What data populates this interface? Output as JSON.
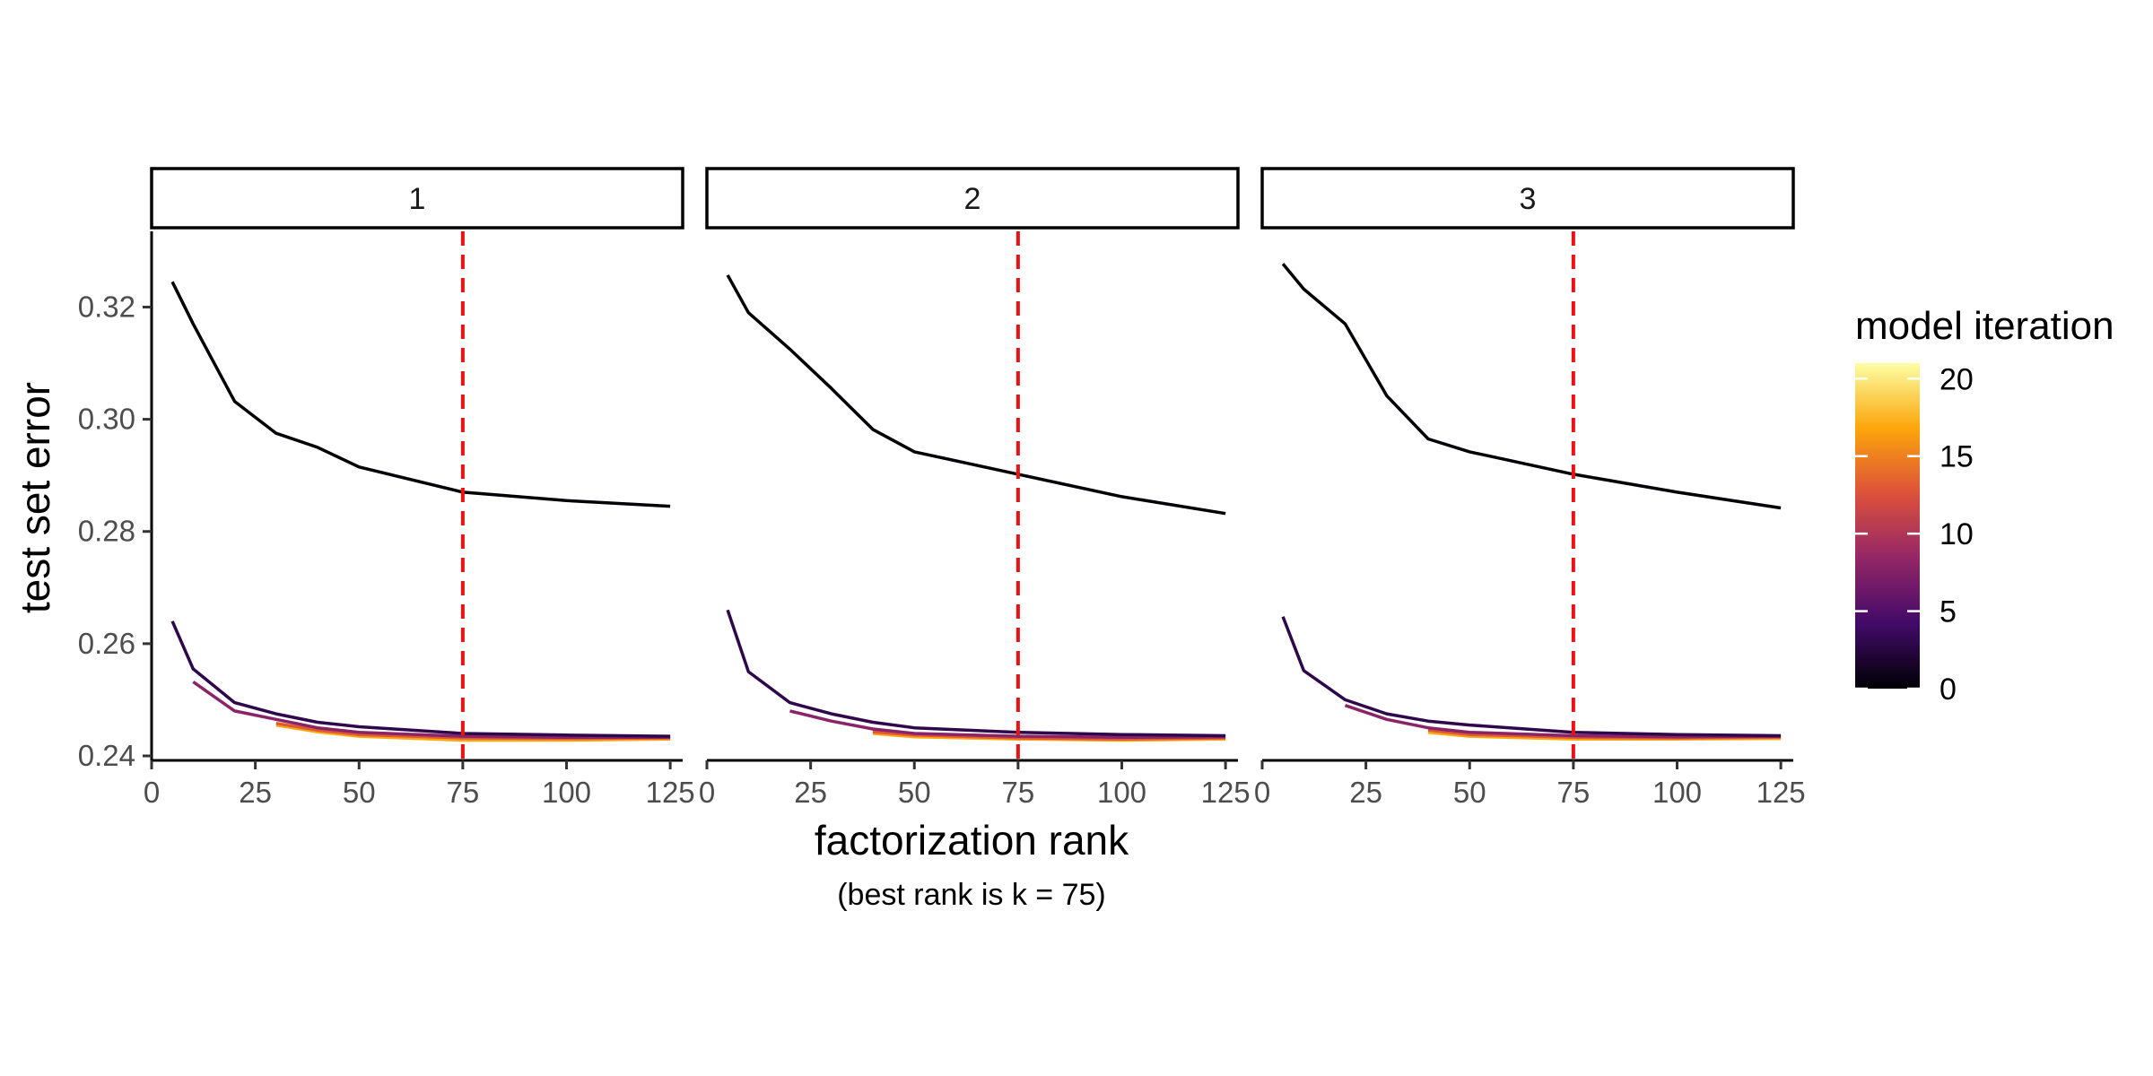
{
  "chart_data": {
    "type": "line",
    "xlabel": "factorization rank",
    "ylabel": "test set error",
    "caption": "(best rank is k = 75)",
    "xlim": [
      0,
      128
    ],
    "ylim": [
      0.2392,
      0.3335
    ],
    "x_ticks": [
      0,
      25,
      50,
      75,
      100,
      125
    ],
    "y_ticks": [
      0.24,
      0.26,
      0.28,
      0.3,
      0.32
    ],
    "y_tick_labels": [
      "0.24",
      "0.26",
      "0.28",
      "0.30",
      "0.32"
    ],
    "reference_line": {
      "x": 75,
      "color": "#ee1111",
      "style": "dashed"
    },
    "legend": {
      "title": "model iteration",
      "type": "colorbar",
      "min": 0,
      "max": 21,
      "ticks": [
        0,
        5,
        10,
        15,
        20
      ],
      "placement": "right"
    },
    "palette": [
      "#000004",
      "#420a68",
      "#932667",
      "#dd513a",
      "#fca50a",
      "#fcffa4"
    ],
    "panels": [
      {
        "strip": "1",
        "series": [
          {
            "iteration": 0,
            "x": [
              5,
              10,
              20,
              30,
              40,
              50,
              75,
              100,
              125
            ],
            "y": [
              0.3245,
              0.317,
              0.3032,
              0.2975,
              0.295,
              0.2915,
              0.287,
              0.2855,
              0.2845
            ]
          },
          {
            "iteration": 3,
            "x": [
              5,
              10,
              20,
              30,
              40,
              50,
              75,
              100,
              125
            ],
            "y": [
              0.264,
              0.2555,
              0.2495,
              0.2475,
              0.246,
              0.2452,
              0.244,
              0.2437,
              0.2435
            ]
          },
          {
            "iteration": 8,
            "x": [
              10,
              20,
              30,
              40,
              50,
              75,
              100,
              125
            ],
            "y": [
              0.2532,
              0.248,
              0.2465,
              0.245,
              0.2442,
              0.2435,
              0.2433,
              0.2433
            ]
          },
          {
            "iteration": 13,
            "x": [
              30,
              40,
              50,
              75,
              100,
              125
            ],
            "y": [
              0.2458,
              0.2446,
              0.2438,
              0.2432,
              0.2431,
              0.2432
            ]
          },
          {
            "iteration": 17,
            "x": [
              30,
              40,
              50,
              75,
              100,
              125
            ],
            "y": [
              0.2455,
              0.2443,
              0.2435,
              0.2428,
              0.2428,
              0.243
            ]
          }
        ]
      },
      {
        "strip": "2",
        "series": [
          {
            "iteration": 0,
            "x": [
              5,
              10,
              20,
              30,
              40,
              50,
              75,
              100,
              125
            ],
            "y": [
              0.3257,
              0.319,
              0.3125,
              0.3055,
              0.2982,
              0.2942,
              0.2902,
              0.2862,
              0.2832
            ]
          },
          {
            "iteration": 3,
            "x": [
              5,
              10,
              20,
              30,
              40,
              50,
              75,
              100,
              125
            ],
            "y": [
              0.266,
              0.255,
              0.2495,
              0.2475,
              0.246,
              0.245,
              0.2442,
              0.2438,
              0.2436
            ]
          },
          {
            "iteration": 8,
            "x": [
              20,
              30,
              40,
              50,
              75,
              100,
              125
            ],
            "y": [
              0.248,
              0.2462,
              0.2448,
              0.244,
              0.2435,
              0.2433,
              0.2434
            ]
          },
          {
            "iteration": 13,
            "x": [
              40,
              50,
              75,
              100,
              125
            ],
            "y": [
              0.2443,
              0.2437,
              0.2432,
              0.243,
              0.2432
            ]
          },
          {
            "iteration": 17,
            "x": [
              40,
              50,
              75,
              100,
              125
            ],
            "y": [
              0.244,
              0.2434,
              0.243,
              0.2428,
              0.243
            ]
          },
          {
            "iteration": 21,
            "x": [
              100,
              125
            ],
            "y": [
              0.2428,
              0.243
            ]
          }
        ]
      },
      {
        "strip": "3",
        "series": [
          {
            "iteration": 0,
            "x": [
              5,
              10,
              20,
              30,
              40,
              50,
              75,
              100,
              125
            ],
            "y": [
              0.3277,
              0.3232,
              0.317,
              0.3042,
              0.2965,
              0.2942,
              0.2902,
              0.287,
              0.2842
            ]
          },
          {
            "iteration": 3,
            "x": [
              5,
              10,
              20,
              30,
              40,
              50,
              75,
              100,
              125
            ],
            "y": [
              0.2648,
              0.2552,
              0.25,
              0.2475,
              0.2462,
              0.2455,
              0.2442,
              0.2438,
              0.2436
            ]
          },
          {
            "iteration": 8,
            "x": [
              20,
              30,
              40,
              50,
              75,
              100,
              125
            ],
            "y": [
              0.249,
              0.2465,
              0.245,
              0.2442,
              0.2436,
              0.2434,
              0.2435
            ]
          },
          {
            "iteration": 13,
            "x": [
              40,
              50,
              75,
              100,
              125
            ],
            "y": [
              0.2446,
              0.2438,
              0.2433,
              0.2432,
              0.2433
            ]
          },
          {
            "iteration": 17,
            "x": [
              40,
              50,
              75,
              100,
              125
            ],
            "y": [
              0.2442,
              0.2435,
              0.243,
              0.243,
              0.2431
            ]
          },
          {
            "iteration": 21,
            "x": [
              100,
              125
            ],
            "y": [
              0.2431,
              0.2432
            ]
          }
        ]
      }
    ]
  }
}
